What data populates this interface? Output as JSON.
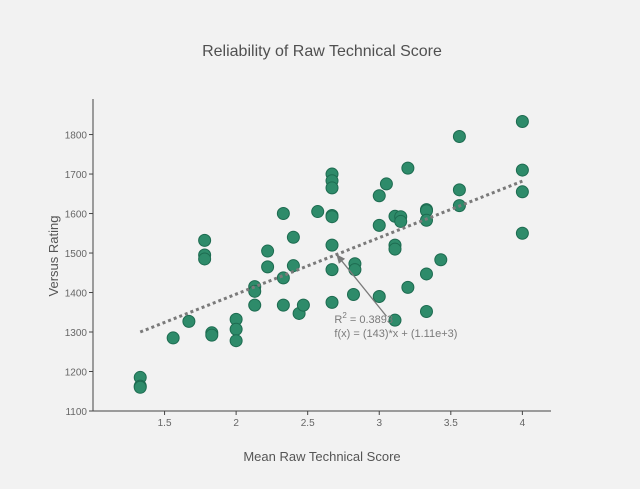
{
  "chart_data": {
    "type": "scatter",
    "title": "Reliability of Raw Technical Score",
    "xlabel": "Mean Raw Technical Score",
    "ylabel": "Versus Rating",
    "xlim": [
      1.0,
      4.2
    ],
    "ylim": [
      1100,
      1890
    ],
    "xticks": [
      1.5,
      2,
      2.5,
      3,
      3.5,
      4
    ],
    "xtick_labels": [
      "1.5",
      "2",
      "2.5",
      "3",
      "3.5",
      "4"
    ],
    "yticks": [
      1100,
      1200,
      1300,
      1400,
      1500,
      1600,
      1700,
      1800
    ],
    "ytick_labels": [
      "1100",
      "1200",
      "1300",
      "1400",
      "1500",
      "1600",
      "1700",
      "1800"
    ],
    "grid": false,
    "marker_color": "#2e8b6a",
    "marker_edge": "#1d6b50",
    "trend_color": "#7a7a7a",
    "points": [
      {
        "x": 1.33,
        "y": 1185
      },
      {
        "x": 1.33,
        "y": 1163
      },
      {
        "x": 1.33,
        "y": 1160
      },
      {
        "x": 1.56,
        "y": 1285
      },
      {
        "x": 1.67,
        "y": 1327
      },
      {
        "x": 1.78,
        "y": 1532
      },
      {
        "x": 1.78,
        "y": 1495
      },
      {
        "x": 1.78,
        "y": 1485
      },
      {
        "x": 1.83,
        "y": 1298
      },
      {
        "x": 1.83,
        "y": 1292
      },
      {
        "x": 2.0,
        "y": 1332
      },
      {
        "x": 2.0,
        "y": 1307
      },
      {
        "x": 2.0,
        "y": 1278
      },
      {
        "x": 2.13,
        "y": 1415
      },
      {
        "x": 2.13,
        "y": 1403
      },
      {
        "x": 2.13,
        "y": 1368
      },
      {
        "x": 2.22,
        "y": 1505
      },
      {
        "x": 2.22,
        "y": 1465
      },
      {
        "x": 2.33,
        "y": 1600
      },
      {
        "x": 2.33,
        "y": 1437
      },
      {
        "x": 2.33,
        "y": 1368
      },
      {
        "x": 2.4,
        "y": 1540
      },
      {
        "x": 2.4,
        "y": 1468
      },
      {
        "x": 2.44,
        "y": 1347
      },
      {
        "x": 2.47,
        "y": 1368
      },
      {
        "x": 2.57,
        "y": 1605
      },
      {
        "x": 2.67,
        "y": 1700
      },
      {
        "x": 2.67,
        "y": 1683
      },
      {
        "x": 2.67,
        "y": 1665
      },
      {
        "x": 2.67,
        "y": 1595
      },
      {
        "x": 2.67,
        "y": 1592
      },
      {
        "x": 2.67,
        "y": 1520
      },
      {
        "x": 2.67,
        "y": 1458
      },
      {
        "x": 2.67,
        "y": 1375
      },
      {
        "x": 2.83,
        "y": 1473
      },
      {
        "x": 2.83,
        "y": 1458
      },
      {
        "x": 2.82,
        "y": 1395
      },
      {
        "x": 3.0,
        "y": 1645
      },
      {
        "x": 3.0,
        "y": 1570
      },
      {
        "x": 3.0,
        "y": 1390
      },
      {
        "x": 3.05,
        "y": 1675
      },
      {
        "x": 3.11,
        "y": 1593
      },
      {
        "x": 3.11,
        "y": 1520
      },
      {
        "x": 3.11,
        "y": 1510
      },
      {
        "x": 3.11,
        "y": 1330
      },
      {
        "x": 3.15,
        "y": 1592
      },
      {
        "x": 3.15,
        "y": 1580
      },
      {
        "x": 3.2,
        "y": 1715
      },
      {
        "x": 3.2,
        "y": 1413
      },
      {
        "x": 3.33,
        "y": 1610
      },
      {
        "x": 3.33,
        "y": 1607
      },
      {
        "x": 3.33,
        "y": 1583
      },
      {
        "x": 3.33,
        "y": 1447
      },
      {
        "x": 3.33,
        "y": 1352
      },
      {
        "x": 3.43,
        "y": 1483
      },
      {
        "x": 3.56,
        "y": 1795
      },
      {
        "x": 3.56,
        "y": 1660
      },
      {
        "x": 3.56,
        "y": 1620
      },
      {
        "x": 4.0,
        "y": 1833
      },
      {
        "x": 4.0,
        "y": 1710
      },
      {
        "x": 4.0,
        "y": 1655
      },
      {
        "x": 4.0,
        "y": 1550
      }
    ],
    "trendline": {
      "x": [
        1.33,
        4.0
      ],
      "y": [
        1300,
        1682
      ]
    },
    "annotation": {
      "line1_base": "R",
      "line1_sup": "2",
      "line1_rest": " = 0.3893",
      "line2": "f(x) = (143)*x + (1.11e+3)",
      "arrow_to": {
        "x": 2.7,
        "y": 1497
      },
      "arrow_from": {
        "x": 3.05,
        "y": 1340
      }
    }
  }
}
